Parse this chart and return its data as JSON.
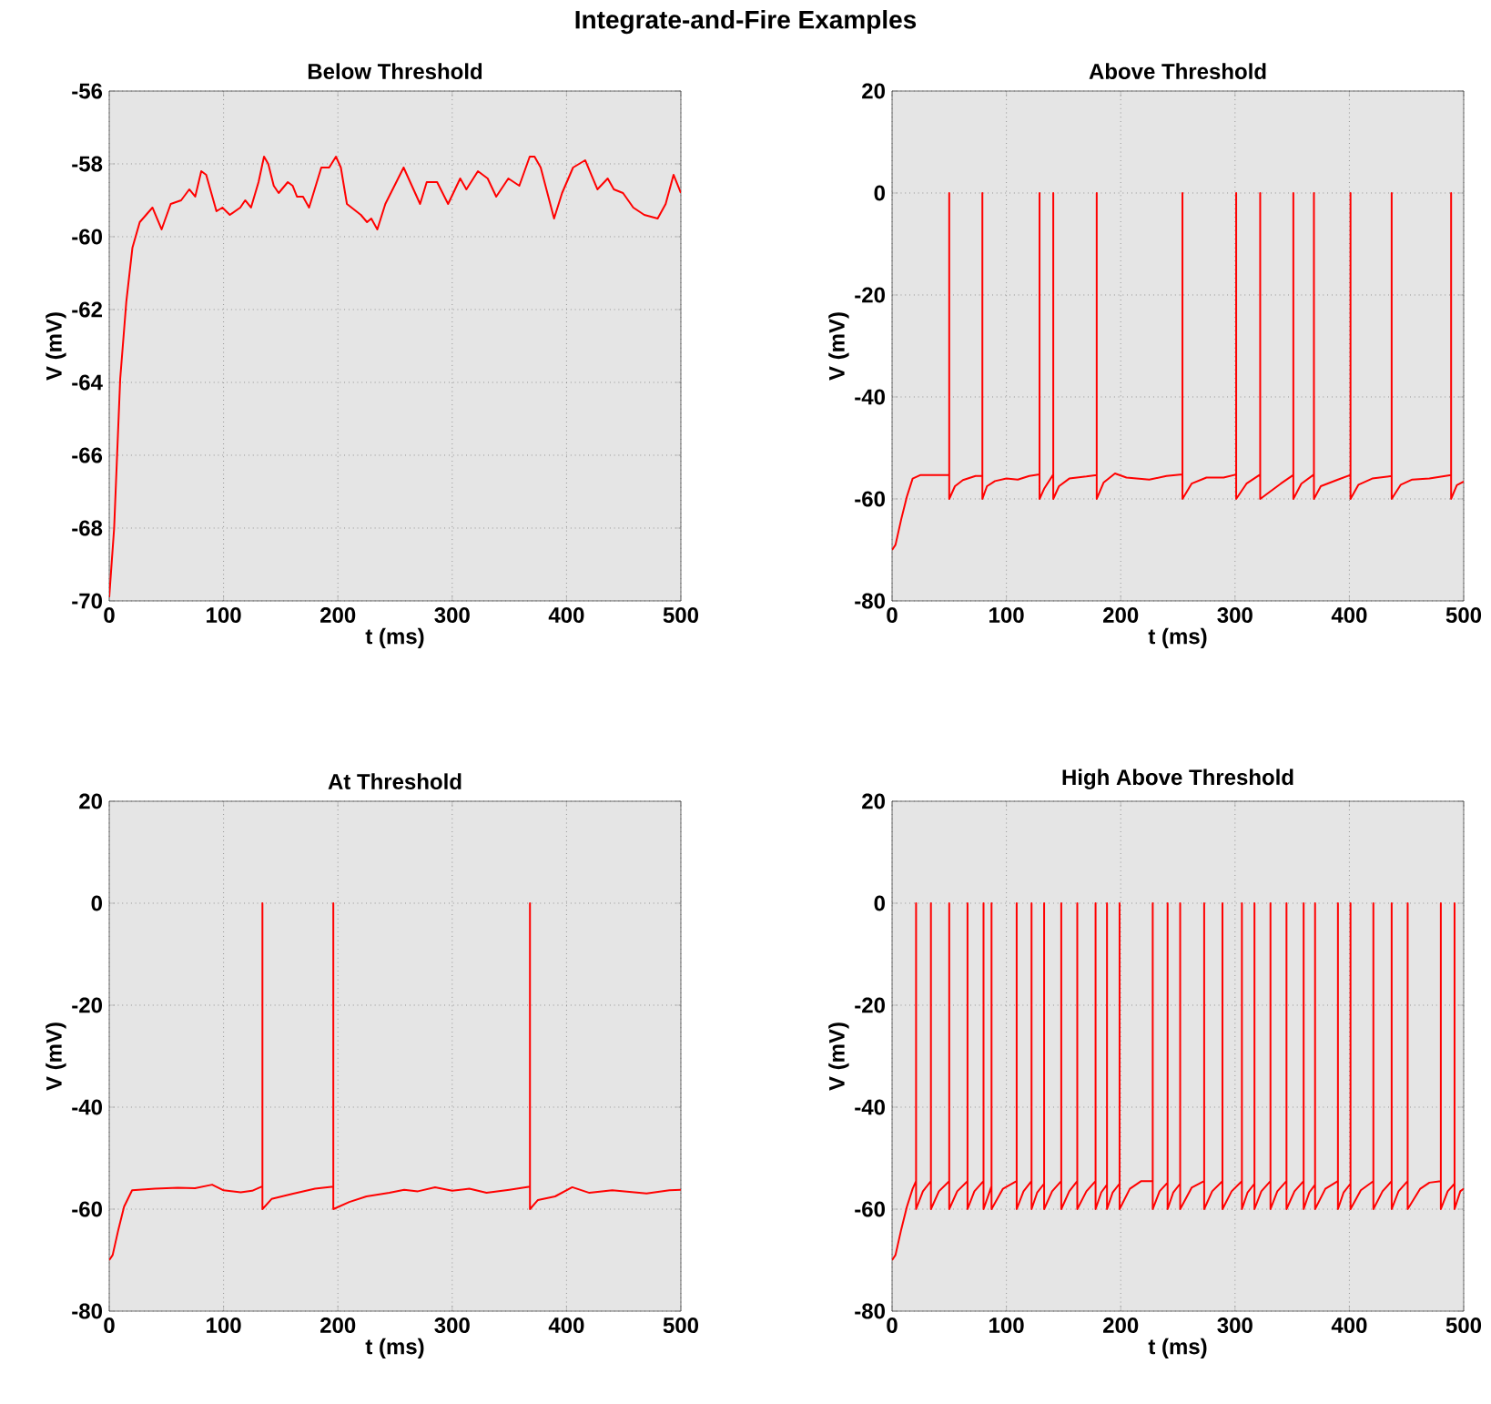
{
  "chart_data": [
    {
      "type": "other",
      "title": "Integrate-and-Fire Examples"
    },
    {
      "type": "line",
      "title": "Below Threshold",
      "xlabel": "t (ms)",
      "ylabel": "V (mV)",
      "color": "#ff0000",
      "grid": true,
      "xlim": [
        0,
        500
      ],
      "ylim": [
        -70,
        -56
      ],
      "xticks": [
        0,
        100,
        200,
        300,
        400,
        500
      ],
      "yticks": [
        -70,
        -68,
        -66,
        -64,
        -62,
        -60,
        -58,
        -56
      ],
      "x": [
        0,
        4.3,
        9.6,
        14.9,
        20.3,
        26.7,
        37.8,
        45.8,
        53.8,
        62.9,
        70,
        75.2,
        80.5,
        84.8,
        93.8,
        99,
        105.5,
        114.6,
        118.9,
        124,
        130.6,
        135.4,
        139.1,
        143.9,
        148.2,
        156.2,
        160.4,
        164.2,
        169.5,
        174.8,
        185.5,
        192.4,
        198.3,
        202.6,
        207.9,
        220.1,
        225.5,
        229.2,
        234.5,
        241.5,
        257.5,
        271.9,
        277.7,
        286.8,
        296.4,
        307,
        312.4,
        322.5,
        331,
        338.5,
        349.1,
        358.7,
        367.8,
        372,
        377.4,
        389.1,
        396.1,
        405.7,
        416.3,
        427,
        436,
        441.4,
        449.4,
        458.4,
        468,
        479.7,
        486.7,
        493.6,
        500
      ],
      "values": [
        -69.9,
        -68.0,
        -63.9,
        -61.8,
        -60.3,
        -59.6,
        -59.2,
        -59.8,
        -59.1,
        -59.0,
        -58.7,
        -58.9,
        -58.2,
        -58.3,
        -59.3,
        -59.2,
        -59.4,
        -59.2,
        -59.0,
        -59.2,
        -58.5,
        -57.8,
        -58.0,
        -58.6,
        -58.8,
        -58.5,
        -58.6,
        -58.9,
        -58.9,
        -59.2,
        -58.1,
        -58.1,
        -57.8,
        -58.1,
        -59.1,
        -59.4,
        -59.6,
        -59.5,
        -59.8,
        -59.1,
        -58.1,
        -59.1,
        -58.5,
        -58.5,
        -59.1,
        -58.4,
        -58.7,
        -58.2,
        -58.4,
        -58.9,
        -58.4,
        -58.6,
        -57.8,
        -57.8,
        -58.1,
        -59.5,
        -58.8,
        -58.1,
        -57.9,
        -58.7,
        -58.4,
        -58.7,
        -58.8,
        -59.2,
        -59.4,
        -59.5,
        -59.1,
        -58.3,
        -58.8
      ]
    },
    {
      "type": "line",
      "title": "Above Threshold",
      "xlabel": "t (ms)",
      "ylabel": "V (mV)",
      "color": "#ff0000",
      "grid": true,
      "xlim": [
        0,
        500
      ],
      "ylim": [
        -80,
        20
      ],
      "xticks": [
        0,
        100,
        200,
        300,
        400,
        500
      ],
      "yticks": [
        -80,
        -60,
        -40,
        -20,
        0,
        20
      ],
      "x": [
        0,
        3,
        8,
        13,
        18,
        25,
        50,
        50,
        50,
        55,
        62,
        73,
        79,
        79,
        79,
        83,
        90,
        100,
        110,
        120,
        129,
        129,
        129,
        133,
        141,
        141,
        141,
        146,
        155,
        170,
        179,
        179,
        179,
        185,
        195,
        205,
        225,
        240,
        254,
        254,
        254,
        262,
        275,
        290,
        301,
        301,
        301,
        310,
        322,
        322,
        322,
        340,
        351,
        351,
        351,
        358,
        369,
        369,
        369,
        375,
        390,
        401,
        401,
        401,
        408,
        420,
        437,
        437,
        437,
        445,
        455,
        470,
        489,
        489,
        489,
        494,
        500
      ],
      "values": [
        -70,
        -69,
        -64,
        -59.5,
        -56,
        -55.3,
        -55.3,
        0,
        -60,
        -57.5,
        -56.3,
        -55.5,
        -55.5,
        0,
        -60,
        -57.5,
        -56.5,
        -56,
        -56.2,
        -55.5,
        -55.2,
        0,
        -60,
        -58,
        -55.2,
        0,
        -60,
        -57.5,
        -56,
        -55.6,
        -55.3,
        0,
        -60,
        -56.8,
        -55,
        -55.8,
        -56.2,
        -55.5,
        -55.2,
        0,
        -60,
        -57,
        -55.8,
        -55.8,
        -55.2,
        0,
        -60,
        -57,
        -55.2,
        0,
        -60,
        -57,
        -55.3,
        0,
        -60,
        -57,
        -55.2,
        0,
        -60,
        -57.5,
        -56.2,
        -55.3,
        0,
        -60,
        -57.2,
        -56,
        -55.5,
        0,
        -60,
        -57.2,
        -56.2,
        -56,
        -55.3,
        0,
        -60,
        -57.3,
        -56.6
      ]
    },
    {
      "type": "line",
      "title": "At Threshold",
      "xlabel": "t (ms)",
      "ylabel": "V (mV)",
      "color": "#ff0000",
      "grid": true,
      "xlim": [
        0,
        500
      ],
      "ylim": [
        -80,
        20
      ],
      "xticks": [
        0,
        100,
        200,
        300,
        400,
        500
      ],
      "yticks": [
        -80,
        -60,
        -40,
        -20,
        0,
        20
      ],
      "x": [
        0,
        3,
        8,
        13,
        20,
        40,
        60,
        75,
        90,
        100,
        115,
        125,
        134,
        134,
        134,
        142,
        160,
        180,
        196,
        196,
        196,
        210,
        225,
        245,
        258,
        270,
        285,
        300,
        315,
        330,
        350,
        368,
        368,
        368,
        375,
        390,
        405,
        420,
        440,
        470,
        490,
        500
      ],
      "values": [
        -70,
        -69,
        -64,
        -59.5,
        -56.3,
        -56,
        -55.8,
        -55.9,
        -55.2,
        -56.3,
        -56.7,
        -56.4,
        -55.5,
        0,
        -60,
        -58,
        -57,
        -56,
        -55.6,
        0,
        -60,
        -58.6,
        -57.5,
        -56.8,
        -56.2,
        -56.5,
        -55.7,
        -56.4,
        -56,
        -56.8,
        -56.2,
        -55.6,
        0,
        -60,
        -58.2,
        -57.5,
        -55.7,
        -56.8,
        -56.3,
        -56.9,
        -56.3,
        -56.2
      ]
    },
    {
      "type": "line",
      "title": "High Above Threshold",
      "xlabel": "t (ms)",
      "ylabel": "V (mV)",
      "color": "#ff0000",
      "grid": true,
      "xlim": [
        0,
        500
      ],
      "ylim": [
        -80,
        20
      ],
      "xticks": [
        0,
        100,
        200,
        300,
        400,
        500
      ],
      "yticks": [
        -80,
        -60,
        -40,
        -20,
        0,
        20
      ],
      "x": [
        0,
        3,
        8,
        13,
        18,
        21,
        21,
        21,
        27,
        34,
        34,
        34,
        41,
        50,
        50,
        50,
        57,
        66,
        66,
        66,
        72,
        80,
        80,
        80,
        87,
        87,
        87,
        97,
        109,
        109,
        109,
        115,
        122,
        122,
        122,
        127,
        133,
        133,
        133,
        140,
        148,
        148,
        148,
        155,
        162,
        162,
        162,
        170,
        178,
        178,
        178,
        183,
        188,
        188,
        188,
        193,
        199,
        199,
        199,
        208,
        218,
        228,
        228,
        228,
        234,
        241,
        241,
        241,
        246,
        252,
        252,
        252,
        262,
        273,
        273,
        273,
        280,
        289,
        289,
        289,
        297,
        306,
        306,
        306,
        311,
        317,
        317,
        317,
        323,
        331,
        331,
        331,
        337,
        345,
        345,
        345,
        352,
        360,
        360,
        360,
        365,
        370,
        370,
        370,
        379,
        390,
        390,
        390,
        395,
        401,
        401,
        401,
        410,
        421,
        421,
        421,
        429,
        437,
        437,
        437,
        443,
        451,
        451,
        451,
        462,
        470,
        480,
        480,
        480,
        486,
        492,
        492,
        492,
        497,
        500
      ],
      "values": [
        -70,
        -69,
        -64,
        -59.5,
        -56,
        -54.5,
        0,
        -60,
        -56.5,
        -54.5,
        0,
        -60,
        -56.5,
        -54.5,
        0,
        -60,
        -56.5,
        -54.5,
        0,
        -60,
        -56.5,
        -54.5,
        0,
        -60,
        -55.5,
        0,
        -60,
        -56,
        -54.5,
        0,
        -60,
        -56.5,
        -54.5,
        0,
        -60,
        -56.7,
        -55,
        0,
        -60,
        -56.5,
        -54.5,
        0,
        -60,
        -56.5,
        -54.5,
        0,
        -60,
        -56.5,
        -54.5,
        0,
        -60,
        -56.7,
        -55.2,
        0,
        -60,
        -56.7,
        -55,
        0,
        -60,
        -56,
        -54.5,
        -54.5,
        0,
        -60,
        -56.5,
        -54.8,
        0,
        -60,
        -56.7,
        -55,
        0,
        -60,
        -55.8,
        -54.5,
        0,
        -60,
        -56.5,
        -54.5,
        0,
        -60,
        -56.5,
        -54.5,
        0,
        -60,
        -56.7,
        -55,
        0,
        -60,
        -56.5,
        -54.5,
        0,
        -60,
        -56.5,
        -54.5,
        0,
        -60,
        -56.5,
        -54.5,
        0,
        -60,
        -56.7,
        -55.2,
        0,
        -60,
        -56,
        -54.5,
        0,
        -60,
        -56.7,
        -55,
        0,
        -60,
        -56.3,
        -54.5,
        0,
        -60,
        -56.5,
        -54.5,
        0,
        -60,
        -56.5,
        -54.5,
        0,
        -60,
        -56,
        -54.8,
        -54.5,
        0,
        -60,
        -56.5,
        -55,
        0,
        -60,
        -56.5,
        -56
      ]
    }
  ]
}
